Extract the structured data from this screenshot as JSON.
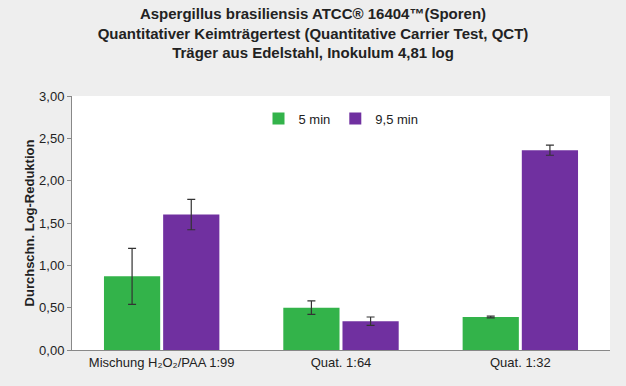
{
  "chart_data": {
    "type": "bar",
    "title": "Aspergillus brasiliensis ATCC® 16404™(Sporen)\nQuantitativer Keimträgertest (Quantitative Carrier Test, QCT)\nTräger aus Edelstahl, Inokulum 4,81 log",
    "y_label": "Durchschn. Log-Reduktion",
    "categories": [
      "Mischung H₂O₂/PAA 1:99",
      "Quat. 1:64",
      "Quat. 1:32"
    ],
    "series": [
      {
        "name": "5 min",
        "color": "#33b34a",
        "values": [
          0.87,
          0.5,
          0.39
        ],
        "error": [
          0.33,
          0.08,
          0.01
        ]
      },
      {
        "name": "9,5 min",
        "color": "#7030a0",
        "values": [
          1.6,
          0.34,
          2.36
        ],
        "error": [
          0.18,
          0.05,
          0.06
        ]
      }
    ],
    "ylim": [
      0,
      3
    ],
    "yticks": [
      {
        "value": 0,
        "label": "0,00"
      },
      {
        "value": 0.5,
        "label": "0,50"
      },
      {
        "value": 1,
        "label": "1,00"
      },
      {
        "value": 1.5,
        "label": "1,50"
      },
      {
        "value": 2,
        "label": "2,00"
      },
      {
        "value": 2.5,
        "label": "2,50"
      },
      {
        "value": 3,
        "label": "3,00"
      }
    ],
    "grid": false,
    "legend": "top"
  }
}
